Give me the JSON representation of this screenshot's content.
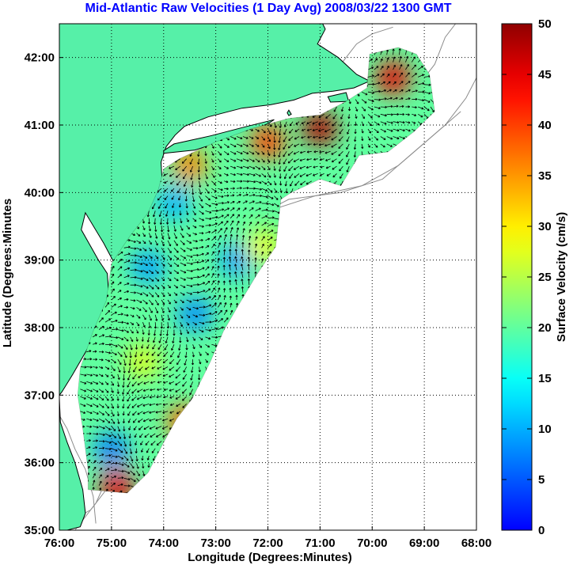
{
  "chart_data": {
    "type": "heatmap",
    "title": "Mid-Atlantic Raw Velocities (1 Day Avg) 2008/03/22 1300 GMT",
    "xlabel": "Longitude (Degrees:Minutes)",
    "ylabel": "Latitude (Degrees:Minutes",
    "xlim": [
      -76,
      -68
    ],
    "ylim": [
      35,
      42.5
    ],
    "x_ticks": [
      {
        "value": -76,
        "label": "76:00"
      },
      {
        "value": -75,
        "label": "75:00"
      },
      {
        "value": -74,
        "label": "74:00"
      },
      {
        "value": -73,
        "label": "73:00"
      },
      {
        "value": -72,
        "label": "72:00"
      },
      {
        "value": -71,
        "label": "71:00"
      },
      {
        "value": -70,
        "label": "70:00"
      },
      {
        "value": -69,
        "label": "69:00"
      },
      {
        "value": -68,
        "label": "68:00"
      }
    ],
    "y_ticks": [
      {
        "value": 35,
        "label": "35:00"
      },
      {
        "value": 36,
        "label": "36:00"
      },
      {
        "value": 37,
        "label": "37:00"
      },
      {
        "value": 38,
        "label": "38:00"
      },
      {
        "value": 39,
        "label": "39:00"
      },
      {
        "value": 40,
        "label": "40:00"
      },
      {
        "value": 41,
        "label": "41:00"
      },
      {
        "value": 42,
        "label": "42:00"
      }
    ],
    "grid": true,
    "colorbar": {
      "label": "Surface Velocity (cm/s)",
      "min": 0,
      "max": 50,
      "ticks": [
        "0",
        "5",
        "10",
        "15",
        "20",
        "25",
        "30",
        "35",
        "40",
        "45",
        "50"
      ]
    },
    "hotspots": [
      {
        "lon": -69.6,
        "lat": 41.7,
        "speed": 45
      },
      {
        "lon": -71.0,
        "lat": 40.95,
        "speed": 48
      },
      {
        "lon": -72.0,
        "lat": 40.75,
        "speed": 40
      },
      {
        "lon": -73.5,
        "lat": 40.4,
        "speed": 36
      },
      {
        "lon": -74.9,
        "lat": 35.65,
        "speed": 45
      },
      {
        "lon": -73.6,
        "lat": 36.6,
        "speed": 38
      },
      {
        "lon": -72.1,
        "lat": 39.2,
        "speed": 28
      },
      {
        "lon": -74.4,
        "lat": 37.5,
        "speed": 27
      }
    ],
    "calm_zones": [
      {
        "lon": -73.4,
        "lat": 38.2,
        "speed": 8
      },
      {
        "lon": -74.3,
        "lat": 38.9,
        "speed": 9
      },
      {
        "lon": -73.8,
        "lat": 39.85,
        "speed": 10
      },
      {
        "lon": -72.6,
        "lat": 39.0,
        "speed": 9
      },
      {
        "lon": -75.0,
        "lat": 36.2,
        "speed": 7
      }
    ],
    "colors": {
      "land": "#56f0a8",
      "coast": "#000000",
      "bathymetry": "#8c8c8c",
      "grid": "#000000",
      "title": "#0000ff",
      "frame": "#000000",
      "arrow": "#000000"
    }
  }
}
